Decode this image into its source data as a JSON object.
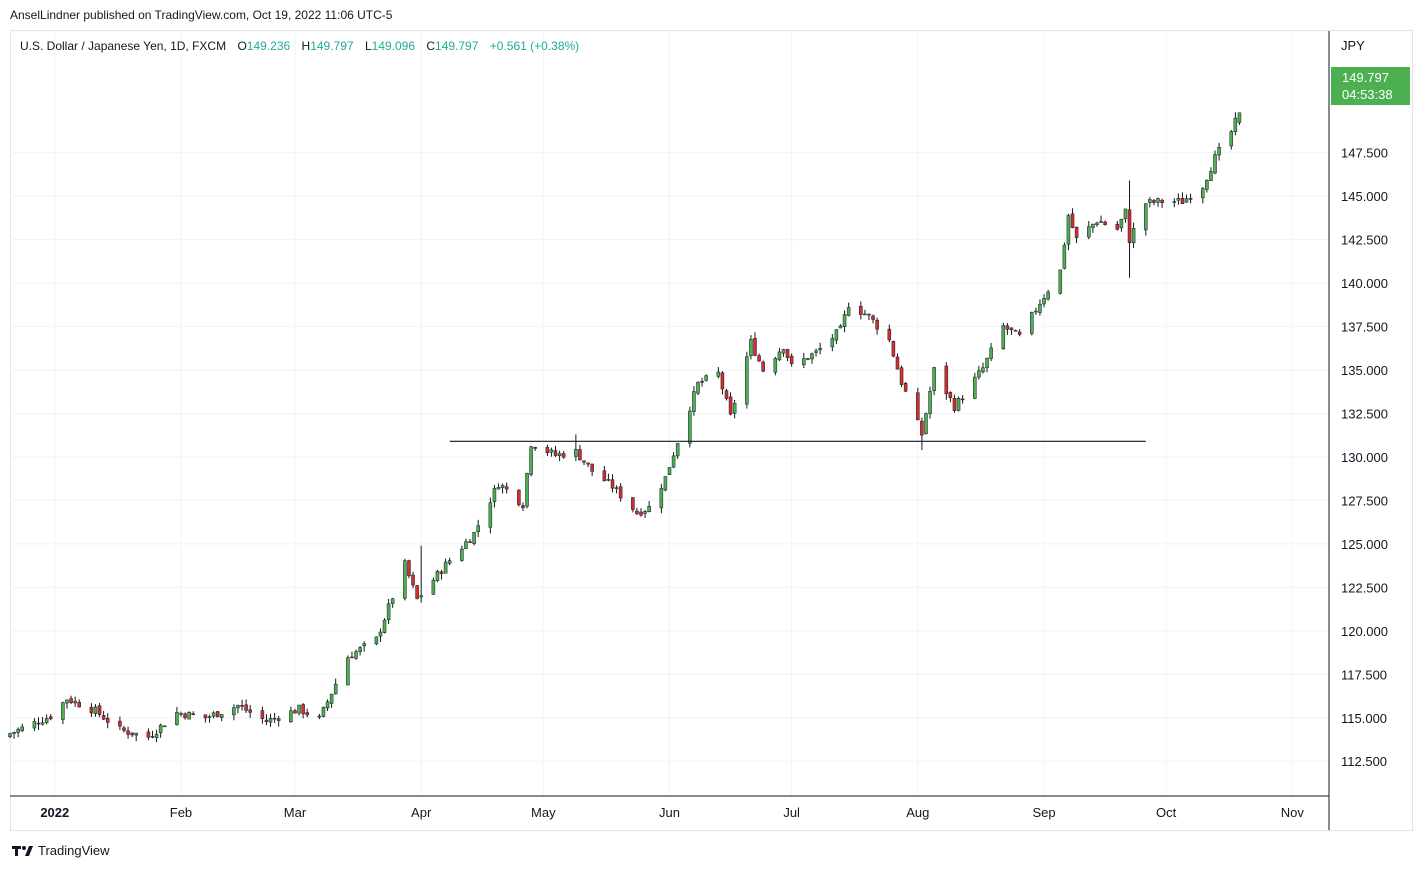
{
  "header": {
    "publisher_line": "AnselLindner published on TradingView.com, Oct 19, 2022 11:06 UTC-5"
  },
  "legend": {
    "symbol": "U.S. Dollar / Japanese Yen, 1D, FXCM",
    "open_label": "O",
    "open": "149.236",
    "high_label": "H",
    "high": "149.797",
    "low_label": "L",
    "low": "149.096",
    "close_label": "C",
    "close": "149.797",
    "change": "+0.561 (+0.38%)"
  },
  "price_axis": {
    "currency": "JPY",
    "last_price": "149.797",
    "countdown": "04:53:38"
  },
  "footer": {
    "brand": "TradingView"
  },
  "colors": {
    "up": "#4caf50",
    "down": "#d32f2f",
    "wick": "#131722",
    "grid": "#f0f3fa",
    "badge": "#4caf50",
    "line": "#131722"
  },
  "chart_data": {
    "type": "candlestick",
    "title": "U.S. Dollar / Japanese Yen, 1D, FXCM",
    "ylabel": "JPY",
    "ylim": [
      110.5,
      154.5
    ],
    "y_ticks": [
      112.5,
      115.0,
      117.5,
      120.0,
      122.5,
      125.0,
      127.5,
      130.0,
      132.5,
      135.0,
      137.5,
      140.0,
      142.5,
      145.0,
      147.5
    ],
    "x_ticks": [
      {
        "label": "2022",
        "date": "2022-01-01",
        "bold": true
      },
      {
        "label": "Feb",
        "date": "2022-02-01"
      },
      {
        "label": "Mar",
        "date": "2022-03-01"
      },
      {
        "label": "Apr",
        "date": "2022-04-01"
      },
      {
        "label": "May",
        "date": "2022-05-01"
      },
      {
        "label": "Jun",
        "date": "2022-06-01"
      },
      {
        "label": "Jul",
        "date": "2022-07-01"
      },
      {
        "label": "Aug",
        "date": "2022-08-01"
      },
      {
        "label": "Sep",
        "date": "2022-09-01"
      },
      {
        "label": "Oct",
        "date": "2022-10-01"
      },
      {
        "label": "Nov",
        "date": "2022-11-01"
      }
    ],
    "x_range": [
      "2021-12-21",
      "2022-11-10"
    ],
    "horizontal_line": {
      "value": 130.9,
      "start": "2022-04-08",
      "end": "2022-09-26"
    },
    "anchors": [
      [
        "2021-12-21",
        114.1
      ],
      [
        "2021-12-31",
        115.1
      ],
      [
        "2022-01-04",
        116.1
      ],
      [
        "2022-01-11",
        115.4
      ],
      [
        "2022-01-17",
        114.3
      ],
      [
        "2022-01-24",
        113.9
      ],
      [
        "2022-01-31",
        115.3
      ],
      [
        "2022-02-07",
        115.0
      ],
      [
        "2022-02-15",
        115.7
      ],
      [
        "2022-02-22",
        114.8
      ],
      [
        "2022-03-02",
        115.5
      ],
      [
        "2022-03-07",
        114.9
      ],
      [
        "2022-03-14",
        118.5
      ],
      [
        "2022-03-21",
        119.5
      ],
      [
        "2022-03-28",
        123.8
      ],
      [
        "2022-03-31",
        121.8
      ],
      [
        "2022-04-07",
        123.8
      ],
      [
        "2022-04-14",
        125.6
      ],
      [
        "2022-04-20",
        128.5
      ],
      [
        "2022-04-26",
        127.3
      ],
      [
        "2022-04-28",
        130.8
      ],
      [
        "2022-05-04",
        130.1
      ],
      [
        "2022-05-09",
        130.3
      ],
      [
        "2022-05-13",
        129.2
      ],
      [
        "2022-05-18",
        128.3
      ],
      [
        "2022-05-24",
        126.8
      ],
      [
        "2022-05-27",
        127.1
      ],
      [
        "2022-05-31",
        128.8
      ],
      [
        "2022-06-03",
        130.9
      ],
      [
        "2022-06-08",
        134.2
      ],
      [
        "2022-06-13",
        134.8
      ],
      [
        "2022-06-16",
        132.3
      ],
      [
        "2022-06-21",
        136.6
      ],
      [
        "2022-06-24",
        135.0
      ],
      [
        "2022-06-29",
        136.4
      ],
      [
        "2022-07-01",
        135.2
      ],
      [
        "2022-07-07",
        136.0
      ],
      [
        "2022-07-13",
        137.3
      ],
      [
        "2022-07-15",
        138.8
      ],
      [
        "2022-07-20",
        138.1
      ],
      [
        "2022-07-25",
        136.7
      ],
      [
        "2022-07-28",
        134.3
      ],
      [
        "2022-08-02",
        131.3
      ],
      [
        "2022-08-05",
        135.0
      ],
      [
        "2022-08-10",
        132.9
      ],
      [
        "2022-08-12",
        133.5
      ],
      [
        "2022-08-17",
        135.1
      ],
      [
        "2022-08-22",
        137.5
      ],
      [
        "2022-08-26",
        136.9
      ],
      [
        "2022-08-31",
        138.9
      ],
      [
        "2022-09-05",
        140.7
      ],
      [
        "2022-09-07",
        143.9
      ],
      [
        "2022-09-09",
        142.5
      ],
      [
        "2022-09-14",
        143.6
      ],
      [
        "2022-09-19",
        143.1
      ],
      [
        "2022-09-21",
        144.1
      ],
      [
        "2022-09-22",
        142.5
      ],
      [
        "2022-09-26",
        144.6
      ],
      [
        "2022-09-30",
        144.7
      ],
      [
        "2022-10-05",
        144.7
      ],
      [
        "2022-10-10",
        145.6
      ],
      [
        "2022-10-13",
        147.2
      ],
      [
        "2022-10-17",
        148.7
      ],
      [
        "2022-10-19",
        149.797
      ]
    ],
    "wick_overrides": [
      {
        "date": "2022-04-01",
        "high": 124.9
      },
      {
        "date": "2022-05-09",
        "high": 131.3
      },
      {
        "date": "2022-08-02",
        "low": 130.4
      },
      {
        "date": "2022-09-22",
        "low": 140.3,
        "high": 145.9
      }
    ],
    "last_candle": {
      "date": "2022-10-19",
      "open": 149.236,
      "high": 149.797,
      "low": 149.096,
      "close": 149.797
    }
  }
}
